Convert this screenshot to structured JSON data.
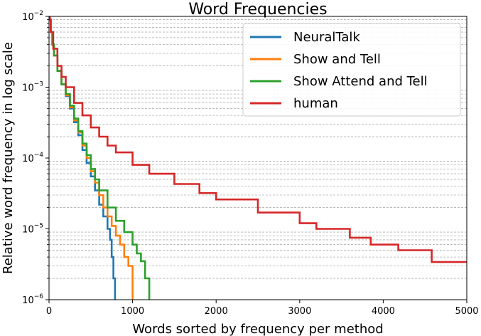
{
  "chart_data": {
    "type": "line",
    "title": "Word Frequencies",
    "xlabel": "Words sorted by frequency per method",
    "ylabel": "Relative word frequency in log scale",
    "xlim": [
      0,
      5000
    ],
    "ylim": [
      1e-06,
      0.01
    ],
    "yscale": "log",
    "grid": "y-minor dashed",
    "legend_position": "top-right",
    "x_ticks": [
      {
        "value": 0,
        "label": "0"
      },
      {
        "value": 1000,
        "label": "1000"
      },
      {
        "value": 2000,
        "label": "2000"
      },
      {
        "value": 3000,
        "label": "3000"
      },
      {
        "value": 4000,
        "label": "4000"
      },
      {
        "value": 5000,
        "label": "5000"
      }
    ],
    "y_ticks": [
      {
        "value": 1e-06,
        "base": "10",
        "exp": "−6"
      },
      {
        "value": 1e-05,
        "base": "10",
        "exp": "−5"
      },
      {
        "value": 0.0001,
        "base": "10",
        "exp": "−4"
      },
      {
        "value": 0.001,
        "base": "10",
        "exp": "−3"
      },
      {
        "value": 0.01,
        "base": "10",
        "exp": "−2"
      }
    ],
    "series": [
      {
        "name": "NeuralTalk",
        "color": "#1f77b4",
        "points": [
          [
            1,
            0.02
          ],
          [
            10,
            0.009
          ],
          [
            20,
            0.006
          ],
          [
            40,
            0.004
          ],
          [
            60,
            0.0028
          ],
          [
            100,
            0.0017
          ],
          [
            150,
            0.0011
          ],
          [
            200,
            0.00075
          ],
          [
            250,
            0.0005
          ],
          [
            300,
            0.00032
          ],
          [
            350,
            0.00021
          ],
          [
            400,
            0.00013
          ],
          [
            450,
            8.5e-05
          ],
          [
            500,
            5.5e-05
          ],
          [
            550,
            3.5e-05
          ],
          [
            600,
            2.2e-05
          ],
          [
            650,
            1.5e-05
          ],
          [
            700,
            1e-05
          ],
          [
            730,
            7e-06
          ],
          [
            750,
            4e-06
          ],
          [
            770,
            2e-06
          ],
          [
            790,
            1e-06
          ]
        ]
      },
      {
        "name": "Show and Tell",
        "color": "#ff7f0e",
        "points": [
          [
            1,
            0.02
          ],
          [
            10,
            0.009
          ],
          [
            20,
            0.006
          ],
          [
            40,
            0.004
          ],
          [
            60,
            0.0028
          ],
          [
            100,
            0.0017
          ],
          [
            150,
            0.0011
          ],
          [
            200,
            0.00077
          ],
          [
            250,
            0.00052
          ],
          [
            300,
            0.00034
          ],
          [
            350,
            0.00023
          ],
          [
            400,
            0.00015
          ],
          [
            450,
            0.0001
          ],
          [
            500,
            6.5e-05
          ],
          [
            550,
            4.5e-05
          ],
          [
            600,
            3e-05
          ],
          [
            650,
            2e-05
          ],
          [
            700,
            1.5e-05
          ],
          [
            750,
            1.1e-05
          ],
          [
            800,
            8e-06
          ],
          [
            850,
            6e-06
          ],
          [
            900,
            4e-06
          ],
          [
            950,
            3e-06
          ],
          [
            1000,
            1e-06
          ]
        ]
      },
      {
        "name": "Show Attend and Tell",
        "color": "#2ca02c",
        "points": [
          [
            1,
            0.02
          ],
          [
            10,
            0.009
          ],
          [
            20,
            0.006
          ],
          [
            40,
            0.004
          ],
          [
            60,
            0.0028
          ],
          [
            100,
            0.0017
          ],
          [
            150,
            0.0011
          ],
          [
            200,
            0.0008
          ],
          [
            250,
            0.00055
          ],
          [
            300,
            0.00036
          ],
          [
            350,
            0.00024
          ],
          [
            400,
            0.00016
          ],
          [
            450,
            0.00011
          ],
          [
            500,
            7e-05
          ],
          [
            550,
            5e-05
          ],
          [
            600,
            3.5e-05
          ],
          [
            700,
            2e-05
          ],
          [
            800,
            1.3e-05
          ],
          [
            900,
            9e-06
          ],
          [
            1000,
            6e-06
          ],
          [
            1050,
            4.5e-06
          ],
          [
            1100,
            3.5e-06
          ],
          [
            1150,
            2e-06
          ],
          [
            1200,
            1e-06
          ]
        ]
      },
      {
        "name": "human",
        "color": "#d62728",
        "points": [
          [
            1,
            0.02
          ],
          [
            10,
            0.009
          ],
          [
            20,
            0.006
          ],
          [
            50,
            0.0035
          ],
          [
            100,
            0.002
          ],
          [
            150,
            0.0014
          ],
          [
            200,
            0.001
          ],
          [
            300,
            0.0006
          ],
          [
            400,
            0.0004
          ],
          [
            500,
            0.00027
          ],
          [
            600,
            0.0002
          ],
          [
            700,
            0.00015
          ],
          [
            800,
            0.00012
          ],
          [
            1000,
            8e-05
          ],
          [
            1200,
            6e-05
          ],
          [
            1500,
            4.3e-05
          ],
          [
            1800,
            3.2e-05
          ],
          [
            2000,
            2.6e-05
          ],
          [
            2500,
            1.7e-05
          ],
          [
            3000,
            1.2e-05
          ],
          [
            3200,
            1e-05
          ],
          [
            3600,
            7.5e-06
          ],
          [
            3850,
            6e-06
          ],
          [
            4180,
            5e-06
          ],
          [
            4580,
            4e-06
          ],
          [
            4580,
            3.4e-06
          ],
          [
            5000,
            3.4e-06
          ]
        ]
      }
    ]
  }
}
